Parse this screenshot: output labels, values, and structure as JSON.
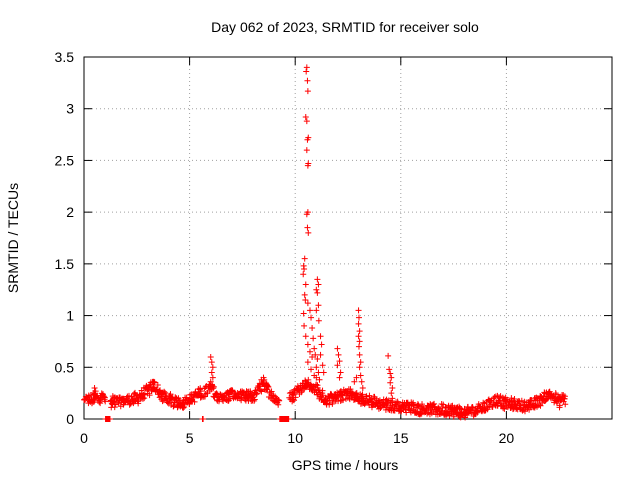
{
  "chart_data": {
    "type": "scatter",
    "title": "Day 062 of 2023, SRMTID for receiver solo",
    "xlabel": "GPS time / hours",
    "ylabel": "SRMTID / TECUs",
    "xlim": [
      0,
      25
    ],
    "ylim": [
      0,
      3.5
    ],
    "xticks": [
      0,
      5,
      10,
      15,
      20
    ],
    "yticks": [
      0,
      0.5,
      1,
      1.5,
      2,
      2.5,
      3,
      3.5
    ],
    "xtick_labels": [
      "0",
      "5",
      "10",
      "15",
      "20"
    ],
    "ytick_labels": [
      "0",
      "0.5",
      "1",
      "1.5",
      "2",
      "2.5",
      "3",
      "3.5"
    ],
    "grid": true,
    "marker": "+",
    "color": "#ff0000",
    "series": [
      {
        "name": "SRMTID",
        "x_range": [
          0,
          22.8
        ],
        "baseline_profile": [
          [
            0.0,
            0.17
          ],
          [
            0.5,
            0.2
          ],
          [
            0.9,
            0.22
          ],
          [
            1.3,
            0.16
          ],
          [
            2.0,
            0.18
          ],
          [
            2.5,
            0.2
          ],
          [
            3.0,
            0.27
          ],
          [
            3.3,
            0.33
          ],
          [
            3.7,
            0.22
          ],
          [
            4.2,
            0.17
          ],
          [
            4.7,
            0.16
          ],
          [
            5.2,
            0.22
          ],
          [
            5.6,
            0.25
          ],
          [
            6.0,
            0.3
          ],
          [
            6.5,
            0.19
          ],
          [
            7.0,
            0.24
          ],
          [
            7.5,
            0.21
          ],
          [
            8.0,
            0.22
          ],
          [
            8.5,
            0.33
          ],
          [
            9.0,
            0.2
          ],
          [
            9.4,
            0.15
          ],
          [
            10.0,
            0.25
          ],
          [
            10.5,
            0.35
          ],
          [
            11.0,
            0.28
          ],
          [
            11.5,
            0.18
          ],
          [
            12.0,
            0.2
          ],
          [
            12.5,
            0.26
          ],
          [
            13.0,
            0.2
          ],
          [
            13.5,
            0.17
          ],
          [
            14.0,
            0.15
          ],
          [
            14.5,
            0.13
          ],
          [
            15.0,
            0.12
          ],
          [
            15.5,
            0.11
          ],
          [
            16.0,
            0.1
          ],
          [
            16.5,
            0.09
          ],
          [
            17.0,
            0.09
          ],
          [
            17.5,
            0.08
          ],
          [
            18.0,
            0.06
          ],
          [
            18.5,
            0.08
          ],
          [
            19.0,
            0.12
          ],
          [
            19.5,
            0.18
          ],
          [
            20.0,
            0.15
          ],
          [
            20.5,
            0.14
          ],
          [
            21.0,
            0.12
          ],
          [
            21.5,
            0.17
          ],
          [
            22.0,
            0.25
          ],
          [
            22.5,
            0.17
          ],
          [
            22.8,
            0.2
          ]
        ],
        "spikes": [
          {
            "x": 10.55,
            "y": 3.4
          },
          {
            "x": 10.52,
            "y": 3.36
          },
          {
            "x": 10.58,
            "y": 3.27
          },
          {
            "x": 10.6,
            "y": 3.17
          },
          {
            "x": 10.5,
            "y": 2.92
          },
          {
            "x": 10.55,
            "y": 2.88
          },
          {
            "x": 10.62,
            "y": 2.72
          },
          {
            "x": 10.58,
            "y": 2.7
          },
          {
            "x": 10.55,
            "y": 2.6
          },
          {
            "x": 10.62,
            "y": 2.47
          },
          {
            "x": 10.6,
            "y": 2.45
          },
          {
            "x": 10.6,
            "y": 2.0
          },
          {
            "x": 10.55,
            "y": 1.98
          },
          {
            "x": 10.58,
            "y": 1.85
          },
          {
            "x": 10.62,
            "y": 1.8
          },
          {
            "x": 10.45,
            "y": 1.55
          },
          {
            "x": 10.4,
            "y": 1.48
          },
          {
            "x": 10.42,
            "y": 1.45
          },
          {
            "x": 10.38,
            "y": 1.4
          },
          {
            "x": 10.5,
            "y": 1.3
          },
          {
            "x": 10.45,
            "y": 1.2
          },
          {
            "x": 10.48,
            "y": 1.15
          },
          {
            "x": 10.6,
            "y": 1.12
          },
          {
            "x": 10.7,
            "y": 1.05
          },
          {
            "x": 10.4,
            "y": 1.02
          },
          {
            "x": 10.75,
            "y": 0.98
          },
          {
            "x": 10.42,
            "y": 0.9
          },
          {
            "x": 10.8,
            "y": 0.88
          },
          {
            "x": 10.5,
            "y": 0.8
          },
          {
            "x": 10.85,
            "y": 0.78
          },
          {
            "x": 10.6,
            "y": 0.72
          },
          {
            "x": 10.9,
            "y": 0.68
          },
          {
            "x": 10.7,
            "y": 0.65
          },
          {
            "x": 10.95,
            "y": 0.62
          },
          {
            "x": 10.8,
            "y": 0.6
          },
          {
            "x": 11.05,
            "y": 0.58
          },
          {
            "x": 10.6,
            "y": 0.55
          },
          {
            "x": 11.0,
            "y": 0.5
          },
          {
            "x": 10.75,
            "y": 0.48
          },
          {
            "x": 11.1,
            "y": 0.45
          },
          {
            "x": 10.9,
            "y": 0.42
          },
          {
            "x": 11.0,
            "y": 0.4
          },
          {
            "x": 11.15,
            "y": 0.38
          },
          {
            "x": 10.5,
            "y": 0.36
          },
          {
            "x": 11.05,
            "y": 1.35
          },
          {
            "x": 11.1,
            "y": 1.3
          },
          {
            "x": 11.0,
            "y": 1.25
          },
          {
            "x": 11.05,
            "y": 1.22
          },
          {
            "x": 11.1,
            "y": 1.1
          },
          {
            "x": 11.0,
            "y": 1.05
          },
          {
            "x": 11.12,
            "y": 0.95
          },
          {
            "x": 11.2,
            "y": 0.8
          },
          {
            "x": 11.25,
            "y": 0.72
          },
          {
            "x": 11.2,
            "y": 0.62
          },
          {
            "x": 11.3,
            "y": 0.52
          },
          {
            "x": 11.35,
            "y": 0.45
          },
          {
            "x": 12.0,
            "y": 0.68
          },
          {
            "x": 12.05,
            "y": 0.62
          },
          {
            "x": 12.1,
            "y": 0.56
          },
          {
            "x": 12.0,
            "y": 0.52
          },
          {
            "x": 12.15,
            "y": 0.45
          },
          {
            "x": 12.1,
            "y": 0.4
          },
          {
            "x": 12.8,
            "y": 0.36
          },
          {
            "x": 12.9,
            "y": 0.4
          },
          {
            "x": 13.0,
            "y": 1.05
          },
          {
            "x": 13.02,
            "y": 0.98
          },
          {
            "x": 13.0,
            "y": 0.92
          },
          {
            "x": 13.05,
            "y": 0.85
          },
          {
            "x": 13.0,
            "y": 0.8
          },
          {
            "x": 13.05,
            "y": 0.75
          },
          {
            "x": 13.02,
            "y": 0.7
          },
          {
            "x": 13.05,
            "y": 0.62
          },
          {
            "x": 13.1,
            "y": 0.55
          },
          {
            "x": 13.05,
            "y": 0.5
          },
          {
            "x": 13.1,
            "y": 0.42
          },
          {
            "x": 13.15,
            "y": 0.36
          },
          {
            "x": 13.2,
            "y": 0.3
          },
          {
            "x": 14.4,
            "y": 0.61
          },
          {
            "x": 14.45,
            "y": 0.48
          },
          {
            "x": 14.5,
            "y": 0.44
          },
          {
            "x": 14.55,
            "y": 0.4
          },
          {
            "x": 14.5,
            "y": 0.35
          },
          {
            "x": 14.6,
            "y": 0.3
          },
          {
            "x": 14.55,
            "y": 0.25
          },
          {
            "x": 14.6,
            "y": 0.2
          },
          {
            "x": 6.0,
            "y": 0.6
          },
          {
            "x": 6.05,
            "y": 0.55
          },
          {
            "x": 6.1,
            "y": 0.5
          },
          {
            "x": 6.05,
            "y": 0.45
          },
          {
            "x": 6.1,
            "y": 0.4
          },
          {
            "x": 6.0,
            "y": 0.36
          },
          {
            "x": 0.5,
            "y": 0.3
          },
          {
            "x": 0.55,
            "y": 0.27
          },
          {
            "x": 3.3,
            "y": 0.36
          },
          {
            "x": 8.4,
            "y": 0.38
          },
          {
            "x": 8.5,
            "y": 0.4
          }
        ],
        "zeros_x_ranges": [
          [
            1.0,
            1.25
          ],
          [
            5.6,
            5.65
          ],
          [
            9.25,
            9.7
          ]
        ]
      }
    ]
  }
}
